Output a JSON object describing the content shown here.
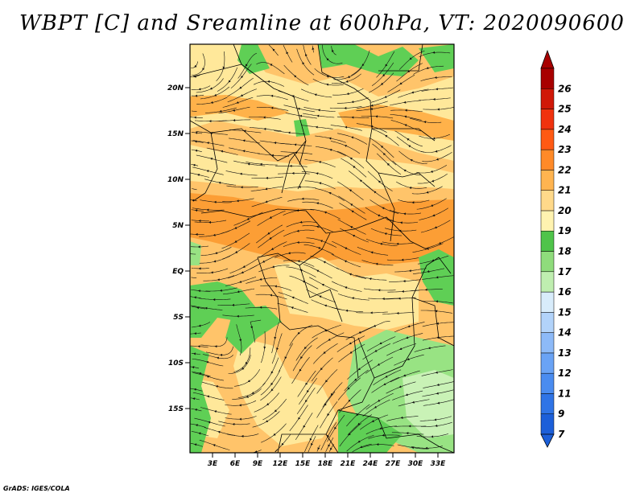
{
  "title": "WBPT [C] and Sreamline at 600hPa, VT: 2020090600",
  "credit": "GrADS: IGES/COLA",
  "map": {
    "lat_labels": [
      "20N",
      "15N",
      "10N",
      "5N",
      "EQ",
      "5S",
      "10S",
      "15S"
    ],
    "lon_labels": [
      "3E",
      "6E",
      "9E",
      "12E",
      "15E",
      "18E",
      "21E",
      "24E",
      "27E",
      "30E",
      "33E"
    ]
  },
  "colorbar": {
    "labels": [
      "7",
      "9",
      "11",
      "12",
      "13",
      "14",
      "15",
      "16",
      "17",
      "18",
      "19",
      "20",
      "21",
      "22",
      "23",
      "24",
      "25",
      "26"
    ],
    "colors": [
      "#1c5fd9",
      "#2f74e6",
      "#4a8cf0",
      "#6aa3f5",
      "#8dbaf8",
      "#b2d3fa",
      "#d8ecfb",
      "#bfeeb0",
      "#8fdc7c",
      "#4fc44a",
      "#fff3b0",
      "#ffd98a",
      "#ffb450",
      "#ff8a28",
      "#ff5a14",
      "#f0320e",
      "#d01808",
      "#a80000"
    ]
  },
  "palette": {
    "yellow": "#ffe89a",
    "orange": "#ffb24a",
    "deep_orange": "#fc9e35",
    "green": "#5fcf55",
    "light_green": "#98e383",
    "pale_green": "#c9f2b6"
  }
}
